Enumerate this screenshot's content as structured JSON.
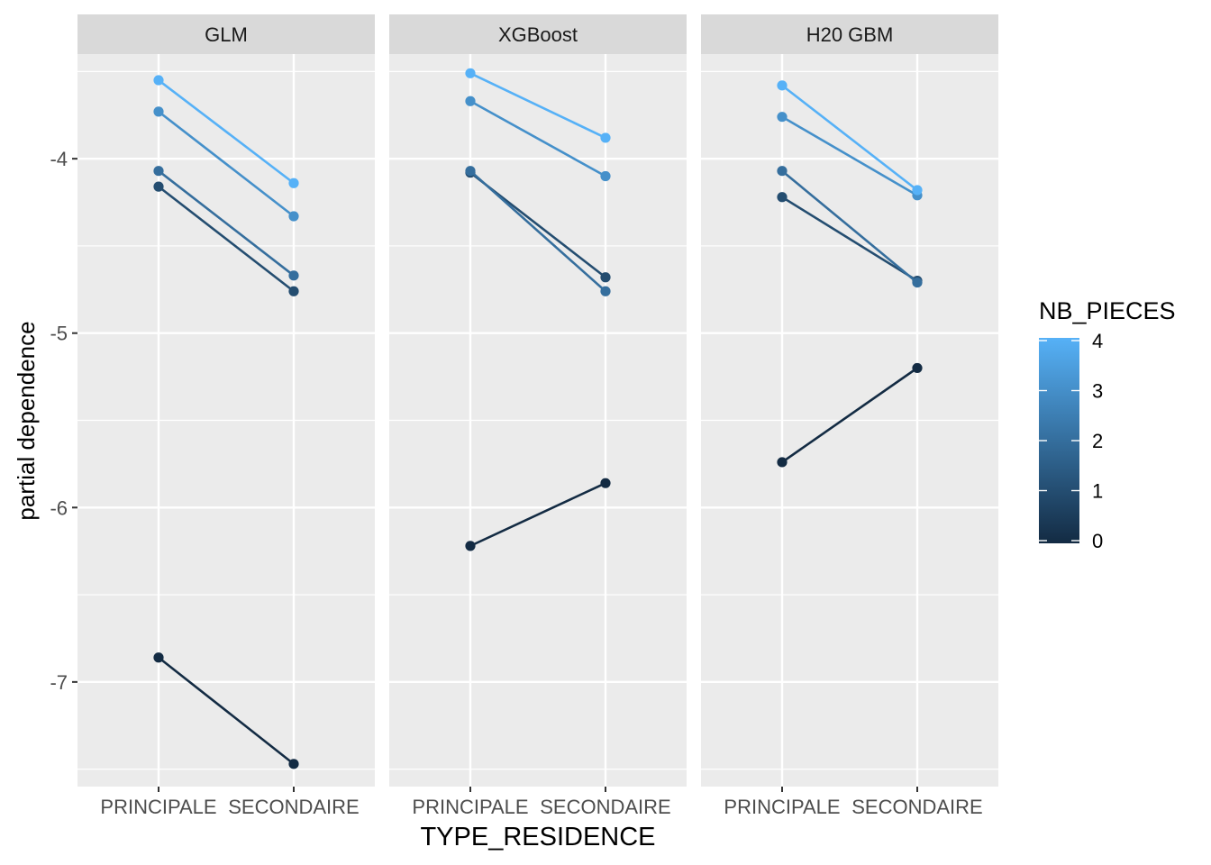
{
  "chart_data": {
    "type": "line",
    "facets": [
      "GLM",
      "XGBoost",
      "H20 GBM"
    ],
    "categories": [
      "PRINCIPALE",
      "SECONDAIRE"
    ],
    "xlabel": "TYPE_RESIDENCE",
    "ylabel": "partial dependence",
    "ylim": [
      -7.6,
      -3.4
    ],
    "yticks": [
      -4,
      -5,
      -6,
      -7
    ],
    "ytick_labels": [
      "-4",
      "-5",
      "-6",
      "-7"
    ],
    "grid": true,
    "legend": {
      "title": "NB_PIECES",
      "placement": "right",
      "min": 0,
      "max": 4,
      "ticks": [
        0,
        1,
        2,
        3,
        4
      ],
      "tick_labels": [
        "0",
        "1",
        "2",
        "3",
        "4"
      ],
      "color_low": "#132B43",
      "color_high": "#56B1F7"
    },
    "panels": [
      {
        "facet": "GLM",
        "series": [
          {
            "nb_pieces": 0,
            "values": [
              -6.86,
              -7.47
            ]
          },
          {
            "nb_pieces": 1,
            "values": [
              -4.16,
              -4.76
            ]
          },
          {
            "nb_pieces": 2,
            "values": [
              -4.07,
              -4.67
            ]
          },
          {
            "nb_pieces": 3,
            "values": [
              -3.73,
              -4.33
            ]
          },
          {
            "nb_pieces": 4,
            "values": [
              -3.55,
              -4.14
            ]
          }
        ]
      },
      {
        "facet": "XGBoost",
        "series": [
          {
            "nb_pieces": 0,
            "values": [
              -6.22,
              -5.86
            ]
          },
          {
            "nb_pieces": 1,
            "values": [
              -4.08,
              -4.68
            ]
          },
          {
            "nb_pieces": 2,
            "values": [
              -4.07,
              -4.76
            ]
          },
          {
            "nb_pieces": 3,
            "values": [
              -3.67,
              -4.1
            ]
          },
          {
            "nb_pieces": 4,
            "values": [
              -3.51,
              -3.88
            ]
          }
        ]
      },
      {
        "facet": "H20 GBM",
        "series": [
          {
            "nb_pieces": 0,
            "values": [
              -5.74,
              -5.2
            ]
          },
          {
            "nb_pieces": 1,
            "values": [
              -4.22,
              -4.7
            ]
          },
          {
            "nb_pieces": 2,
            "values": [
              -4.07,
              -4.71
            ]
          },
          {
            "nb_pieces": 3,
            "values": [
              -3.76,
              -4.21
            ]
          },
          {
            "nb_pieces": 4,
            "values": [
              -3.58,
              -4.18
            ]
          }
        ]
      }
    ]
  }
}
